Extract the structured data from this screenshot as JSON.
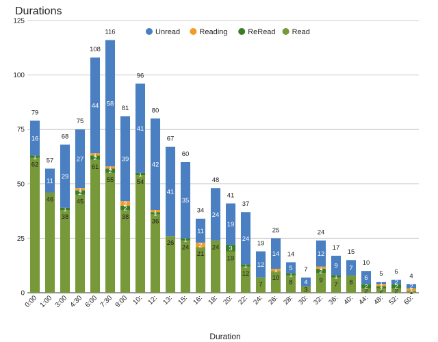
{
  "chart_data": {
    "type": "bar",
    "stacked": true,
    "title": "Durations",
    "xlabel": "Duration",
    "ylabel": "",
    "ylim": [
      0,
      125
    ],
    "yticks": [
      0,
      25,
      50,
      75,
      100,
      125
    ],
    "grid": true,
    "legend_position": "top",
    "categories": [
      "0:00",
      "1:00",
      "3:00",
      "4:30",
      "6:00",
      "7:30",
      "9:00",
      "10:",
      "12:",
      "13:",
      "15:",
      "16:",
      "18:",
      "20:",
      "22:",
      "24:",
      "26:",
      "28:",
      "30:",
      "32:",
      "36:",
      "40:",
      "44:",
      "48:",
      "52:",
      "60:"
    ],
    "series": [
      {
        "name": "Read",
        "color": "#77993a",
        "values": [
          62,
          46,
          38,
          45,
          61,
          55,
          38,
          54,
          36,
          26,
          24,
          21,
          24,
          19,
          12,
          7,
          10,
          8,
          3,
          9,
          7,
          8,
          2,
          2,
          2,
          1
        ]
      },
      {
        "name": "ReRead",
        "color": "#3a7d27",
        "values": [
          1,
          0,
          1,
          2,
          2,
          2,
          2,
          1,
          1,
          0,
          1,
          0,
          0,
          3,
          1,
          0,
          0,
          1,
          0,
          2,
          1,
          0,
          2,
          1,
          2,
          0
        ]
      },
      {
        "name": "Reading",
        "color": "#f39c25",
        "values": [
          0,
          0,
          0,
          1,
          1,
          1,
          2,
          0,
          1,
          0,
          0,
          2,
          0,
          0,
          0,
          0,
          1,
          0,
          0,
          1,
          0,
          0,
          0,
          1,
          0,
          1
        ]
      },
      {
        "name": "Unread",
        "color": "#4a7fc1",
        "values": [
          16,
          11,
          29,
          27,
          44,
          58,
          39,
          41,
          42,
          41,
          35,
          11,
          24,
          19,
          24,
          12,
          14,
          5,
          4,
          12,
          9,
          7,
          6,
          1,
          2,
          2
        ]
      }
    ],
    "totals": [
      79,
      57,
      68,
      75,
      108,
      116,
      81,
      96,
      80,
      67,
      60,
      34,
      48,
      41,
      37,
      19,
      25,
      14,
      7,
      24,
      17,
      15,
      10,
      5,
      6,
      4
    ],
    "legend_order": [
      "Unread",
      "Reading",
      "ReRead",
      "Read"
    ]
  }
}
